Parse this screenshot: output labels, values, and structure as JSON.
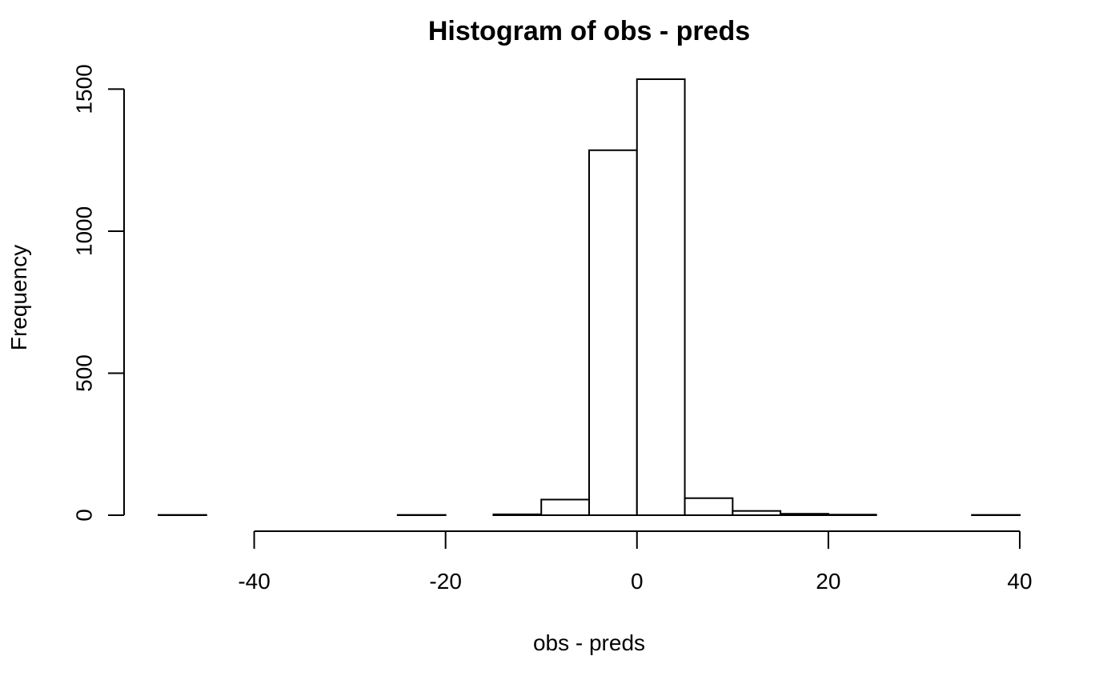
{
  "chart_data": {
    "type": "bar",
    "title": "Histogram of obs - preds",
    "xlabel": "obs - preds",
    "ylabel": "Frequency",
    "bin_width": 5,
    "bin_edges": [
      -50,
      -45,
      -40,
      -35,
      -30,
      -25,
      -20,
      -15,
      -10,
      -5,
      0,
      5,
      10,
      15,
      20,
      25,
      30,
      35,
      40
    ],
    "values": [
      1,
      0,
      0,
      0,
      0,
      1,
      0,
      3,
      55,
      1285,
      1535,
      60,
      15,
      5,
      2,
      0,
      0,
      1
    ],
    "xlim": [
      -50,
      40
    ],
    "ylim": [
      0,
      1535
    ],
    "x_ticks": [
      -40,
      -20,
      0,
      20,
      40
    ],
    "x_tick_labels": [
      "-40",
      "-20",
      "0",
      "20",
      "40"
    ],
    "y_ticks": [
      0,
      500,
      1000,
      1500
    ],
    "y_tick_labels": [
      "0",
      "500",
      "1000",
      "1500"
    ],
    "grid": false,
    "colors": {
      "bar_fill": "#ffffff",
      "bar_stroke": "#000000"
    }
  }
}
